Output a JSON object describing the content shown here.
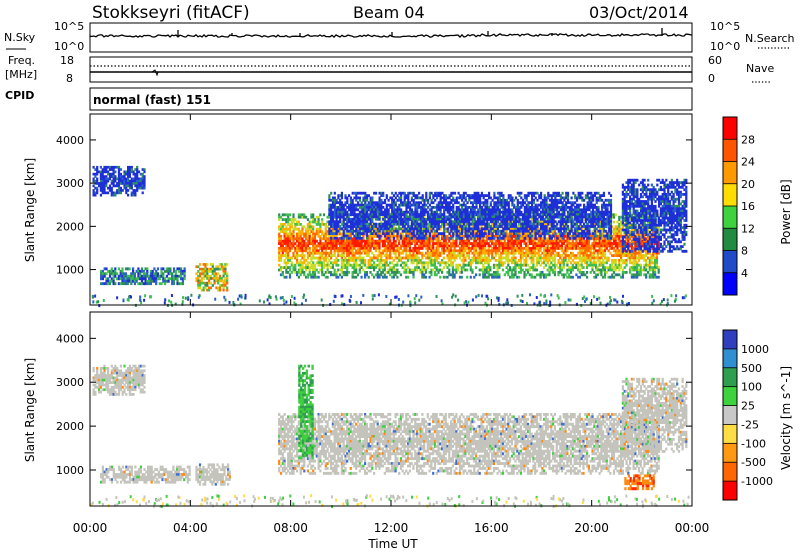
{
  "header": {
    "station": "Stokkseyri (fitACF)",
    "beam": "Beam 04",
    "date": "03/Oct/2014"
  },
  "noise_panel": {
    "left_label": "N.Sky",
    "left_tick_top": "10^5",
    "left_tick_bottom": "10^0",
    "right_tick_top": "10^5",
    "right_tick_bottom": "10^0",
    "right_label": "N.Search"
  },
  "freq_panel": {
    "left_label_1": "Freq.",
    "left_label_2": "[MHz]",
    "left_tick_top": "18",
    "left_tick_bottom": "8",
    "right_tick_top": "60",
    "right_tick_bottom": "0",
    "right_label": "Nave"
  },
  "cpid_panel": {
    "label": "CPID",
    "mode": "normal (fast) 151"
  },
  "chart_data": [
    {
      "type": "heatmap",
      "panel": "power",
      "ylabel": "Slant Range [km]",
      "yticks": [
        1000,
        2000,
        3000,
        4000
      ],
      "ylim": [
        180,
        4600
      ],
      "xticks": [
        "00:00",
        "04:00",
        "08:00",
        "12:00",
        "16:00",
        "20:00",
        "00:00"
      ],
      "xlim_hours": [
        0,
        24
      ],
      "colorbar_label": "Power [dB]",
      "colorbar_ticks": [
        "28",
        "24",
        "20",
        "16",
        "12",
        "8",
        "4"
      ],
      "colorbar_colors": [
        "#ff0000",
        "#ff5500",
        "#ff9900",
        "#ffdd00",
        "#3fd23f",
        "#218b3f",
        "#1f4bc8",
        "#0000ff"
      ],
      "scatter_bands": [
        {
          "t0": 0.1,
          "t1": 2.2,
          "r0": 2700,
          "r1": 3400,
          "dominant": "blue"
        },
        {
          "t0": 0.4,
          "t1": 3.8,
          "r0": 650,
          "r1": 1050,
          "dominant": "blue-green"
        },
        {
          "t0": 4.2,
          "t1": 5.5,
          "r0": 500,
          "r1": 1150,
          "dominant": "orange-yellow"
        },
        {
          "t0": 7.5,
          "t1": 22.7,
          "r0": 800,
          "r1": 2300,
          "dominant": "green-red"
        },
        {
          "t0": 9.5,
          "t1": 20.8,
          "r0": 1700,
          "r1": 2800,
          "dominant": "blue"
        },
        {
          "t0": 21.2,
          "t1": 23.8,
          "r0": 1400,
          "r1": 3100,
          "dominant": "blue"
        }
      ]
    },
    {
      "type": "heatmap",
      "panel": "velocity",
      "ylabel": "Slant Range [km]",
      "xlabel": "Time UT",
      "yticks": [
        1000,
        2000,
        3000,
        4000
      ],
      "ylim": [
        180,
        4600
      ],
      "xticks": [
        "00:00",
        "04:00",
        "08:00",
        "12:00",
        "16:00",
        "20:00",
        "00:00"
      ],
      "xlim_hours": [
        0,
        24
      ],
      "colorbar_label": "Velocity [m s^-1]",
      "colorbar_ticks": [
        "1000",
        "500",
        "100",
        "25",
        "-25",
        "-100",
        "-500",
        "-1000"
      ],
      "colorbar_colors": [
        "#2f3fc0",
        "#2f8fd0",
        "#2f9f4f",
        "#3fd23f",
        "#c8c8c8",
        "#ffdd44",
        "#ff9911",
        "#ff6600",
        "#ff0000"
      ],
      "scatter_bands": [
        {
          "t0": 0.1,
          "t1": 2.2,
          "r0": 2700,
          "r1": 3400,
          "dominant": "grey"
        },
        {
          "t0": 0.4,
          "t1": 4.0,
          "r0": 700,
          "r1": 1100,
          "dominant": "grey"
        },
        {
          "t0": 4.2,
          "t1": 5.6,
          "r0": 650,
          "r1": 1150,
          "dominant": "grey"
        },
        {
          "t0": 7.5,
          "t1": 22.7,
          "r0": 900,
          "r1": 2300,
          "dominant": "grey"
        },
        {
          "t0": 21.2,
          "t1": 23.8,
          "r0": 1400,
          "r1": 3100,
          "dominant": "grey"
        },
        {
          "t0": 21.3,
          "t1": 22.5,
          "r0": 550,
          "r1": 900,
          "dominant": "orange"
        },
        {
          "t0": 8.3,
          "t1": 8.9,
          "r0": 1200,
          "r1": 3400,
          "dominant": "green"
        }
      ]
    }
  ]
}
